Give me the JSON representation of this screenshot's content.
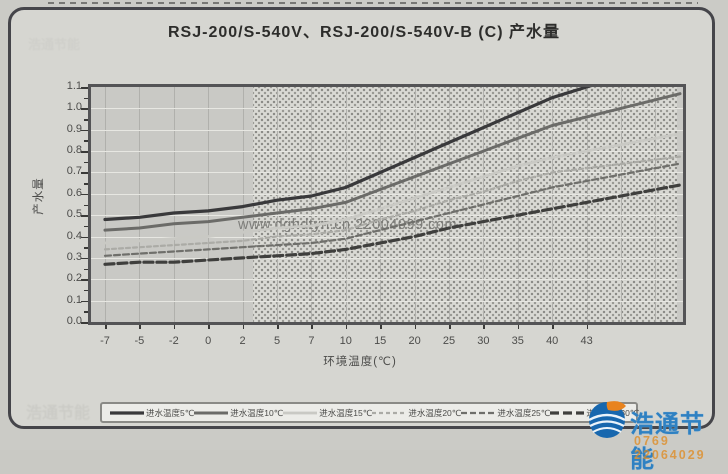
{
  "page": {
    "title": "RSJ-200/S-540V、RSJ-200/S-540V-B (C) 产水量"
  },
  "watermark": {
    "text": "www.dghdtyn.cn 22004099.com"
  },
  "logo": {
    "name": "浩通节能",
    "phone": "0769 22064029"
  },
  "ghost_stamp": {
    "text": "浩通节能"
  },
  "chart_data": {
    "type": "line",
    "title": "RSJ-200/S-540V、RSJ-200/S-540V-B (C) 产水量",
    "xlabel": "环境温度(℃)",
    "ylabel": "产水量",
    "categories": [
      "-7",
      "-5",
      "-2",
      "0",
      "2",
      "5",
      "7",
      "10",
      "15",
      "20",
      "25",
      "30",
      "35",
      "40",
      "43"
    ],
    "ylim": [
      0.0,
      1.1
    ],
    "ytick_step": 0.1,
    "grid": true,
    "legend_position": "bottom",
    "series": [
      {
        "name": "进水温度5℃",
        "color": "#39393b",
        "style": "solid-thick",
        "values": [
          0.48,
          0.49,
          0.51,
          0.52,
          0.54,
          0.57,
          0.59,
          0.63,
          0.7,
          0.77,
          0.84,
          0.91,
          0.98,
          1.05,
          1.1
        ]
      },
      {
        "name": "进水温度10℃",
        "color": "#6b6b68",
        "style": "solid-mid",
        "values": [
          0.43,
          0.44,
          0.46,
          0.47,
          0.49,
          0.51,
          0.53,
          0.56,
          0.62,
          0.68,
          0.74,
          0.8,
          0.86,
          0.92,
          0.96
        ]
      },
      {
        "name": "进水温度15℃",
        "color": "#c9c9c4",
        "style": "solid-light",
        "values": [
          0.37,
          0.38,
          0.39,
          0.4,
          0.42,
          0.44,
          0.45,
          0.48,
          0.53,
          0.58,
          0.63,
          0.68,
          0.73,
          0.77,
          0.8
        ]
      },
      {
        "name": "进水温度20℃",
        "color": "#ababa6",
        "style": "dashed-light",
        "values": [
          0.34,
          0.35,
          0.36,
          0.37,
          0.38,
          0.4,
          0.41,
          0.43,
          0.48,
          0.52,
          0.57,
          0.61,
          0.66,
          0.7,
          0.72
        ]
      },
      {
        "name": "进水温度25℃",
        "color": "#6f6f6b",
        "style": "dashed-mid",
        "values": [
          0.31,
          0.32,
          0.33,
          0.34,
          0.35,
          0.36,
          0.37,
          0.39,
          0.43,
          0.47,
          0.51,
          0.55,
          0.59,
          0.63,
          0.66
        ]
      },
      {
        "name": "进水温度30℃",
        "color": "#3f3f3d",
        "style": "dashed-thick",
        "values": [
          0.27,
          0.28,
          0.28,
          0.29,
          0.3,
          0.31,
          0.32,
          0.34,
          0.37,
          0.4,
          0.44,
          0.47,
          0.5,
          0.53,
          0.56
        ]
      }
    ]
  }
}
